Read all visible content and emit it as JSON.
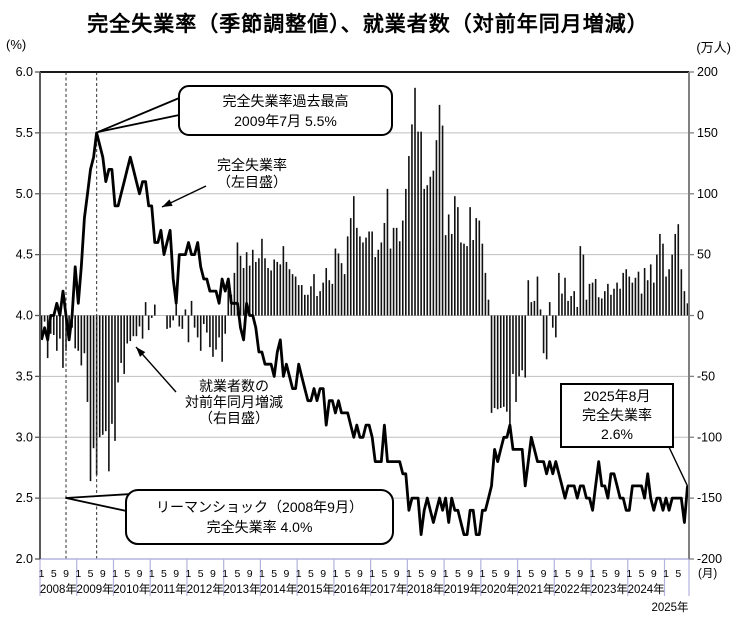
{
  "title": "完全失業率（季節調整値）、就業者数（対前年同月増減）",
  "axes": {
    "left_unit": "(%)",
    "right_unit": "(万人)",
    "month_unit": "(月)",
    "left_ticks": [
      "6.0",
      "5.5",
      "5.0",
      "4.5",
      "4.0",
      "3.5",
      "3.0",
      "2.5",
      "2.0"
    ],
    "right_ticks": [
      "200",
      "150",
      "100",
      "50",
      "0",
      "-50",
      "-100",
      "-150",
      "-200"
    ],
    "month_labels": [
      "1",
      "5",
      "9"
    ],
    "years": [
      "2008年",
      "2009年",
      "2010年",
      "2011年",
      "2012年",
      "2013年",
      "2014年",
      "2015年",
      "2016年",
      "2017年",
      "2018年",
      "2019年",
      "2020年",
      "2021年",
      "2022年",
      "2023年",
      "2024年"
    ],
    "year_2025": "2025年"
  },
  "annotations": {
    "peak_callout": {
      "line1": "完全失業率過去最高",
      "line2": "2009年7月 5.5%"
    },
    "rate_label": {
      "line1": "完全失業率",
      "line2": "（左目盛）"
    },
    "emp_label": {
      "line1": "就業者数の",
      "line2": "対前年同月増減",
      "line3": "（右目盛）"
    },
    "lehman_callout": {
      "line1": "リーマンショック（2008年9月）",
      "line2": "完全失業率 4.0%"
    },
    "latest_box": {
      "line1": "2025年8月",
      "line2": "完全失業率",
      "line3": "2.6%"
    }
  },
  "colors": {
    "line": "#000000",
    "bar": "#111111",
    "grid": "#bfbfbf",
    "axis_left": "#595959",
    "axis_right": "#808080",
    "axis_top": "#1a1a1a",
    "axis_bottom": "#b3b3de",
    "dashed_event": "#404040"
  },
  "chart_data": {
    "type": "line",
    "note": "combined chart: line = unemployment rate (left axis, %), bars = YoY change of employed persons (right axis, 万人); monthly Jan 2008 - Aug 2025",
    "x_start": "2008-01",
    "x_end": "2025-08",
    "left_axis": {
      "min": 2.0,
      "max": 6.0,
      "step": 0.5,
      "label": "完全失業率(%)"
    },
    "right_axis": {
      "min": -200,
      "max": 200,
      "step": 50,
      "label": "就業者数 対前年同月増減(万人)"
    },
    "events": [
      {
        "label": "リーマンショック",
        "date": "2008年9月",
        "month_index": 8,
        "value": "完全失業率 4.0%"
      },
      {
        "label": "完全失業率過去最高",
        "date": "2009年7月",
        "month_index": 18,
        "value": "5.5%"
      }
    ],
    "latest": {
      "date": "2025年8月",
      "unemployment_rate": 2.6
    },
    "series": [
      {
        "name": "完全失業率（左目盛）",
        "kind": "line",
        "axis": "left",
        "unit": "%",
        "values": [
          3.8,
          3.9,
          3.8,
          4.0,
          4.0,
          4.1,
          4.0,
          4.2,
          4.0,
          3.8,
          4.0,
          4.4,
          4.1,
          4.4,
          4.8,
          5.0,
          5.2,
          5.3,
          5.5,
          5.4,
          5.3,
          5.1,
          5.2,
          5.2,
          4.9,
          4.9,
          5.0,
          5.1,
          5.2,
          5.3,
          5.2,
          5.1,
          5.0,
          5.1,
          5.1,
          4.9,
          4.9,
          4.6,
          4.6,
          4.7,
          4.5,
          4.6,
          4.7,
          4.3,
          4.1,
          4.5,
          4.5,
          4.5,
          4.6,
          4.5,
          4.5,
          4.6,
          4.4,
          4.3,
          4.3,
          4.2,
          4.2,
          4.2,
          4.1,
          4.3,
          4.2,
          4.3,
          4.1,
          4.1,
          4.1,
          3.9,
          3.8,
          4.1,
          4.0,
          4.0,
          3.9,
          3.7,
          3.7,
          3.6,
          3.6,
          3.6,
          3.5,
          3.7,
          3.8,
          3.5,
          3.6,
          3.5,
          3.4,
          3.4,
          3.6,
          3.5,
          3.4,
          3.3,
          3.3,
          3.4,
          3.3,
          3.4,
          3.4,
          3.1,
          3.3,
          3.3,
          3.2,
          3.3,
          3.2,
          3.2,
          3.2,
          3.1,
          3.0,
          3.1,
          3.0,
          3.0,
          3.1,
          3.1,
          3.0,
          2.8,
          2.8,
          2.8,
          3.1,
          2.8,
          2.8,
          2.8,
          2.8,
          2.8,
          2.7,
          2.7,
          2.4,
          2.5,
          2.5,
          2.5,
          2.2,
          2.4,
          2.5,
          2.4,
          2.3,
          2.4,
          2.5,
          2.4,
          2.5,
          2.3,
          2.5,
          2.4,
          2.4,
          2.3,
          2.2,
          2.2,
          2.4,
          2.4,
          2.2,
          2.2,
          2.4,
          2.4,
          2.5,
          2.6,
          2.9,
          2.8,
          2.9,
          3.0,
          3.0,
          3.1,
          2.9,
          2.9,
          2.9,
          2.9,
          2.6,
          2.8,
          3.0,
          2.9,
          2.8,
          2.8,
          2.8,
          2.7,
          2.8,
          2.7,
          2.8,
          2.7,
          2.6,
          2.5,
          2.6,
          2.6,
          2.6,
          2.5,
          2.6,
          2.6,
          2.5,
          2.5,
          2.4,
          2.6,
          2.8,
          2.6,
          2.6,
          2.5,
          2.7,
          2.7,
          2.6,
          2.5,
          2.5,
          2.4,
          2.4,
          2.6,
          2.6,
          2.6,
          2.6,
          2.5,
          2.7,
          2.5,
          2.4,
          2.5,
          2.5,
          2.4,
          2.5,
          2.4,
          2.5,
          2.5,
          2.5,
          2.5,
          2.3,
          2.6
        ]
      },
      {
        "name": "就業者数の対前年同月増減（右目盛）",
        "kind": "bar",
        "axis": "right",
        "unit": "万人",
        "values": [
          -17,
          -5,
          -35,
          -15,
          -16,
          -29,
          -19,
          -43,
          -29,
          -16,
          -10,
          -27,
          -29,
          -41,
          -31,
          -71,
          -136,
          -109,
          -131,
          -100,
          -98,
          -95,
          -128,
          -89,
          -103,
          -55,
          -39,
          -48,
          -23,
          -21,
          -17,
          -17,
          -9,
          -19,
          11,
          -12,
          -2,
          9,
          0,
          0,
          0,
          -11,
          -10,
          -4,
          9,
          -9,
          -11,
          5,
          -22,
          12,
          -10,
          -18,
          -29,
          -7,
          -14,
          -26,
          -34,
          -28,
          -18,
          -38,
          -15,
          30,
          17,
          35,
          60,
          49,
          39,
          52,
          41,
          54,
          44,
          47,
          63,
          47,
          39,
          37,
          46,
          44,
          42,
          57,
          44,
          38,
          34,
          32,
          25,
          25,
          17,
          17,
          24,
          34,
          16,
          20,
          27,
          39,
          29,
          26,
          55,
          51,
          43,
          34,
          65,
          80,
          98,
          72,
          65,
          60,
          64,
          69,
          69,
          48,
          54,
          60,
          76,
          104,
          55,
          72,
          72,
          61,
          78,
          104,
          131,
          157,
          187,
          151,
          151,
          104,
          107,
          114,
          119,
          144,
          173,
          156,
          66,
          83,
          67,
          98,
          89,
          60,
          59,
          57,
          89,
          62,
          80,
          78,
          59,
          35,
          13,
          -80,
          -76,
          -77,
          -76,
          -75,
          -79,
          -93,
          -48,
          -71,
          -50,
          -45,
          -51,
          29,
          11,
          12,
          32,
          5,
          -31,
          -36,
          11,
          -10,
          -18,
          35,
          18,
          31,
          12,
          16,
          20,
          7,
          57,
          50,
          13,
          26,
          27,
          30,
          15,
          14,
          20,
          26,
          17,
          22,
          27,
          22,
          35,
          38,
          32,
          27,
          31,
          36,
          18,
          39,
          29,
          42,
          27,
          50,
          67,
          59,
          32,
          38,
          50,
          67,
          75,
          38,
          20,
          10
        ]
      }
    ]
  }
}
